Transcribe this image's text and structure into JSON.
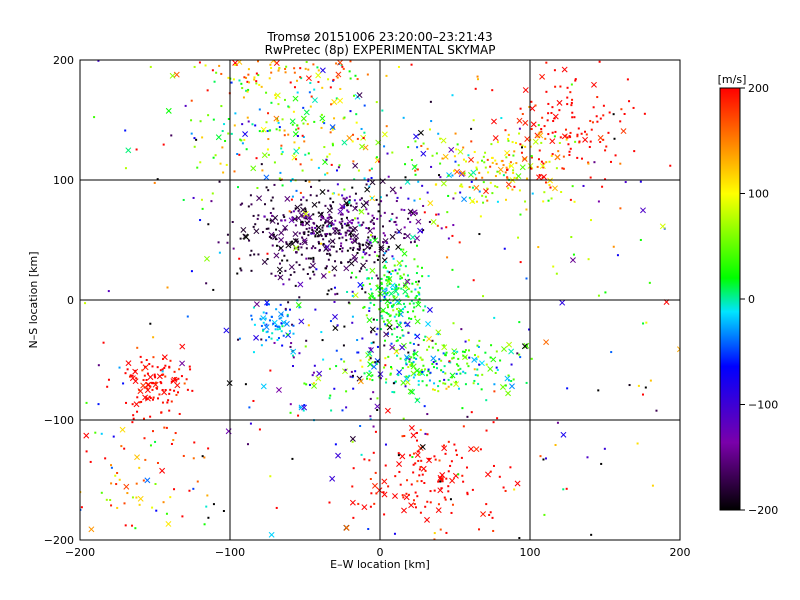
{
  "chart_data": {
    "type": "scatter",
    "title": "Tromsø 20151006 23:20:00–23:21:43",
    "subtitle": "RwPretec (8p) EXPERIMENTAL SKYMAP",
    "xlabel": "E–W location [km]",
    "ylabel": "N–S location [km]",
    "xlim": [
      -200,
      200
    ],
    "ylim": [
      -200,
      200
    ],
    "x_ticks": [
      "−200",
      "−100",
      "0",
      "100",
      "200"
    ],
    "y_ticks": [
      "−200",
      "−100",
      "0",
      "100",
      "200"
    ],
    "grid": true,
    "grid_step": 100,
    "marker_styles": [
      "dot",
      "x"
    ],
    "colorbar": {
      "label": "[m/s]",
      "range": [
        -200,
        200
      ],
      "ticks": [
        "200",
        "100",
        "0",
        "−100",
        "−200"
      ],
      "colormap": [
        "#000000",
        "#7a00aa",
        "#0000ff",
        "#00e5ff",
        "#00ff00",
        "#ffff00",
        "#ff0000"
      ]
    },
    "clusters": [
      {
        "cx": -40,
        "cy": 55,
        "sx": 28,
        "sy": 20,
        "n": 380,
        "v": -180,
        "sv": 15
      },
      {
        "cx": -20,
        "cy": 65,
        "sx": 25,
        "sy": 15,
        "n": 120,
        "v": -140,
        "sv": 15
      },
      {
        "cx": 10,
        "cy": 5,
        "sx": 12,
        "sy": 18,
        "n": 200,
        "v": 20,
        "sv": 25
      },
      {
        "cx": 35,
        "cy": -55,
        "sx": 30,
        "sy": 13,
        "n": 250,
        "v": 25,
        "sv": 40
      },
      {
        "cx": -70,
        "cy": -20,
        "sx": 8,
        "sy": 10,
        "n": 60,
        "v": -30,
        "sv": 15
      },
      {
        "cx": -150,
        "cy": -70,
        "sx": 12,
        "sy": 14,
        "n": 120,
        "v": 200,
        "sv": 15
      },
      {
        "cx": -155,
        "cy": -150,
        "sx": 22,
        "sy": 22,
        "n": 60,
        "v": 150,
        "sv": 60
      },
      {
        "cx": 35,
        "cy": -150,
        "sx": 25,
        "sy": 25,
        "n": 150,
        "v": 200,
        "sv": 15
      },
      {
        "cx": 125,
        "cy": 140,
        "sx": 22,
        "sy": 25,
        "n": 140,
        "v": 200,
        "sv": 15
      },
      {
        "cx": 80,
        "cy": 110,
        "sx": 25,
        "sy": 18,
        "n": 150,
        "v": 110,
        "sv": 45
      },
      {
        "cx": -65,
        "cy": 145,
        "sx": 35,
        "sy": 30,
        "n": 220,
        "v": 60,
        "sv": 70
      },
      {
        "cx": -65,
        "cy": 190,
        "sx": 30,
        "sy": 8,
        "n": 60,
        "v": 160,
        "sv": 40
      },
      {
        "cx": 15,
        "cy": 100,
        "sx": 30,
        "sy": 25,
        "n": 80,
        "v": 0,
        "sv": 80
      },
      {
        "cx": -30,
        "cy": -40,
        "sx": 35,
        "sy": 35,
        "n": 120,
        "v": -120,
        "sv": 60
      },
      {
        "cx": 0,
        "cy": 0,
        "sx": 200,
        "sy": 200,
        "n": 520,
        "v": 0,
        "sv": 170
      }
    ]
  }
}
